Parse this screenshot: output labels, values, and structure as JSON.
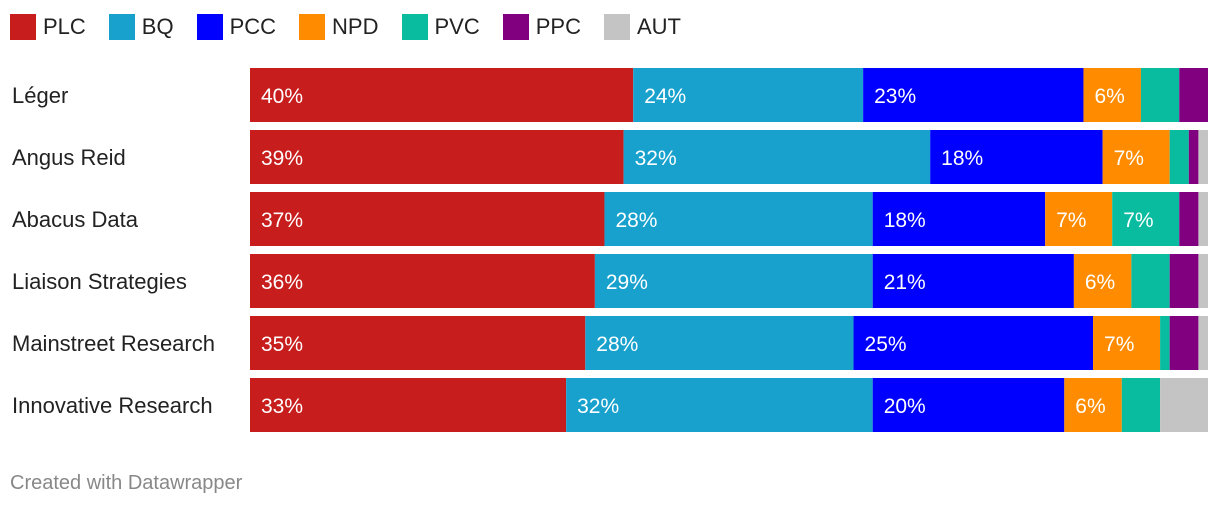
{
  "chart_data": {
    "type": "bar",
    "orientation": "horizontal",
    "stacked": true,
    "categories": [
      "Léger",
      "Angus Reid",
      "Abacus Data",
      "Liaison Strategies",
      "Mainstreet Research",
      "Innovative Research"
    ],
    "series": [
      {
        "name": "PLC",
        "color": "#c71e1d",
        "values": [
          40,
          39,
          37,
          36,
          35,
          33
        ]
      },
      {
        "name": "BQ",
        "color": "#18a1cd",
        "values": [
          24,
          32,
          28,
          29,
          28,
          32
        ]
      },
      {
        "name": "PCC",
        "color": "#0000ff",
        "values": [
          23,
          18,
          18,
          21,
          25,
          20
        ]
      },
      {
        "name": "NPD",
        "color": "#ff8c00",
        "values": [
          6,
          7,
          7,
          6,
          7,
          6
        ]
      },
      {
        "name": "PVC",
        "color": "#09bb9f",
        "values": [
          4,
          2,
          7,
          4,
          1,
          4
        ]
      },
      {
        "name": "PPC",
        "color": "#800080",
        "values": [
          3,
          1,
          2,
          3,
          3,
          0
        ]
      },
      {
        "name": "AUT",
        "color": "#c4c4c4",
        "values": [
          0,
          1,
          1,
          1,
          1,
          5
        ]
      }
    ],
    "label_suffix": "%",
    "legend_position": "top-left",
    "grid": false
  },
  "credit": "Created with Datawrapper"
}
